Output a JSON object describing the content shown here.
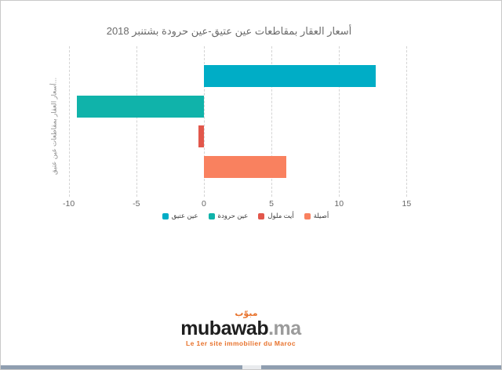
{
  "chart_data": {
    "type": "bar",
    "orientation": "horizontal",
    "title": "أسعار العقار بمقاطعات عين عتيق-عين حرودة بشتنبر 2018",
    "y_axis_label": "أسعار العقار بمقاطعات عين عتيق...",
    "x_ticks": [
      -10,
      -5,
      0,
      5,
      10,
      15
    ],
    "xlim": [
      -10.5,
      15.5
    ],
    "grid": "vertical-dashed",
    "legend_position": "bottom-center",
    "series": [
      {
        "name": "عين عتيق",
        "value": 12.7,
        "color": "#00adc6"
      },
      {
        "name": "عين حرودة",
        "value": -9.4,
        "color": "#10b3aa"
      },
      {
        "name": "أيت ملول",
        "value": -0.4,
        "color": "#e2574b"
      },
      {
        "name": "أصيلة",
        "value": 6.1,
        "color": "#f9815f"
      }
    ],
    "title_color": "#6b6b6b",
    "axis_label_color": "#666666"
  },
  "logo": {
    "arabic_mark": "مبوّب",
    "brand": "mubawab",
    "tld": ".ma",
    "tagline": "Le 1er site immobilier du Maroc",
    "brand_color": "#1f1f1f",
    "tld_color": "#9b9b9b",
    "accent_color": "#e8732d"
  },
  "scrollbar": {
    "track_color": "#8f9eb0",
    "thumb_color": "#e9ebee"
  }
}
